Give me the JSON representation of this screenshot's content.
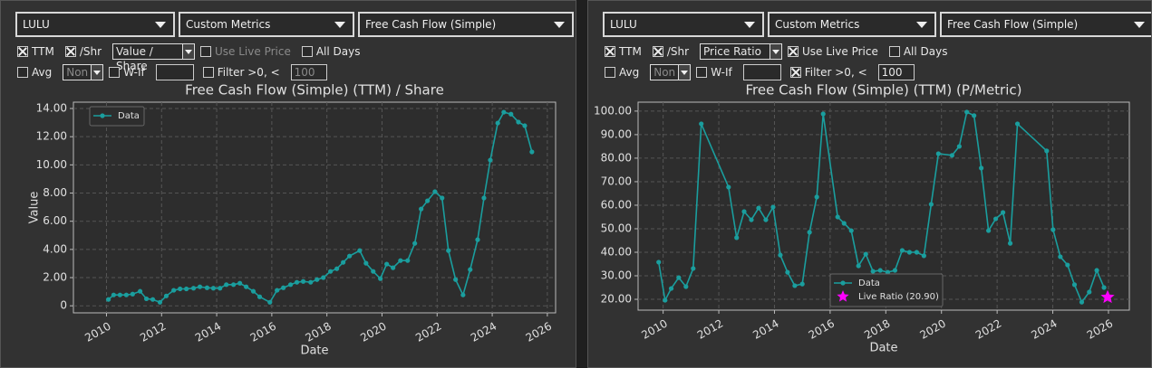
{
  "panels": [
    {
      "dropdowns": [
        "LULU",
        "Custom Metrics",
        "Free Cash Flow (Simple)"
      ],
      "rows": [
        [
          {
            "kind": "check",
            "label": "TTM",
            "checked": true
          },
          {
            "kind": "check",
            "label": "/Shr",
            "checked": true
          },
          {
            "kind": "select",
            "label": "Value / Share"
          },
          {
            "kind": "check",
            "label": "Use Live Price",
            "checked": false,
            "disabled": true
          },
          {
            "kind": "check",
            "label": "All Days",
            "checked": false
          }
        ],
        [
          {
            "kind": "check",
            "label": "Avg",
            "checked": false
          },
          {
            "kind": "select",
            "label": "Non",
            "disabled": true
          },
          {
            "kind": "check",
            "label": "W-If",
            "checked": false
          },
          {
            "kind": "input"
          },
          {
            "kind": "check",
            "label": "Filter >0, <",
            "checked": false
          },
          {
            "kind": "input",
            "label": "100",
            "disabled": true
          }
        ]
      ],
      "chart_data": {
        "type": "line",
        "title": "Free Cash Flow (Simple) (TTM) / Share",
        "xlabel": "Date",
        "ylabel": "Value",
        "xlim": [
          2008.8,
          2026.3
        ],
        "xticks": [
          2010,
          2012,
          2014,
          2016,
          2018,
          2020,
          2022,
          2024,
          2026
        ],
        "ylim": [
          -0.5,
          14.45
        ],
        "yticks": [
          0,
          {
            "value": 2,
            "label": "2.00"
          },
          {
            "value": 4,
            "label": "4.00"
          },
          {
            "value": 6,
            "label": "6.00"
          },
          {
            "value": 8,
            "label": "8.00"
          },
          {
            "value": 10,
            "label": "10.00"
          },
          {
            "value": 12,
            "label": "12.00"
          },
          {
            "value": 14,
            "label": "14.00"
          }
        ],
        "grid": true,
        "legend": "upper left",
        "series": [
          {
            "name": "Data",
            "color": "#1a9e9e",
            "marker": "circle",
            "x": [
              2010.07,
              2010.26,
              2010.49,
              2010.72,
              2010.95,
              2011.22,
              2011.45,
              2011.68,
              2011.94,
              2012.17,
              2012.44,
              2012.67,
              2012.9,
              2013.16,
              2013.39,
              2013.65,
              2013.88,
              2014.12,
              2014.35,
              2014.61,
              2014.84,
              2015.07,
              2015.33,
              2015.56,
              2015.93,
              2016.19,
              2016.42,
              2016.68,
              2016.91,
              2017.14,
              2017.41,
              2017.64,
              2017.87,
              2018.13,
              2018.36,
              2018.59,
              2018.82,
              2019.19,
              2019.42,
              2019.68,
              2019.94,
              2020.17,
              2020.4,
              2020.67,
              2020.93,
              2021.19,
              2021.42,
              2021.65,
              2021.92,
              2022.18,
              2022.41,
              2022.67,
              2022.94,
              2023.2,
              2023.47,
              2023.7,
              2023.93,
              2024.2,
              2024.42,
              2024.68,
              2024.95,
              2025.18,
              2025.44
            ],
            "values": [
              0.45,
              0.77,
              0.77,
              0.77,
              0.83,
              1.03,
              0.5,
              0.45,
              0.25,
              0.7,
              1.1,
              1.2,
              1.2,
              1.25,
              1.35,
              1.28,
              1.25,
              1.25,
              1.5,
              1.5,
              1.6,
              1.35,
              1.03,
              0.64,
              0.25,
              1.1,
              1.28,
              1.5,
              1.67,
              1.73,
              1.67,
              1.86,
              2.0,
              2.44,
              2.63,
              3.08,
              3.53,
              3.92,
              3.02,
              2.44,
              1.93,
              2.96,
              2.7,
              3.21,
              3.21,
              4.43,
              6.87,
              7.45,
              8.1,
              7.65,
              3.92,
              1.86,
              0.77,
              2.57,
              4.69,
              7.65,
              10.34,
              12.97,
              13.74,
              13.6,
              13.04,
              12.78,
              10.92
            ]
          }
        ]
      }
    },
    {
      "dropdowns": [
        "LULU",
        "Custom Metrics",
        "Free Cash Flow (Simple)"
      ],
      "rows": [
        [
          {
            "kind": "check",
            "label": "TTM",
            "checked": true
          },
          {
            "kind": "check",
            "label": "/Shr",
            "checked": true
          },
          {
            "kind": "select",
            "label": "Price Ratio"
          },
          {
            "kind": "check",
            "label": "Use Live Price",
            "checked": true
          },
          {
            "kind": "check",
            "label": "All Days",
            "checked": false
          }
        ],
        [
          {
            "kind": "check",
            "label": "Avg",
            "checked": false
          },
          {
            "kind": "select",
            "label": "Non",
            "disabled": true
          },
          {
            "kind": "check",
            "label": "W-If",
            "checked": false
          },
          {
            "kind": "input"
          },
          {
            "kind": "check",
            "label": "Filter >0, <",
            "checked": true
          },
          {
            "kind": "input",
            "label": "100"
          }
        ]
      ],
      "chart_data": {
        "type": "line",
        "title": "Free Cash Flow (Simple) (TTM) (P/Metric)",
        "xlabel": "Date",
        "xlim": [
          2009.1,
          2026.75
        ],
        "xticks": [
          2010,
          2012,
          2014,
          2016,
          2018,
          2020,
          2022,
          2024,
          2026
        ],
        "ylim": [
          15.4,
          103.8
        ],
        "yticks": [
          {
            "value": 20,
            "label": "20.00"
          },
          {
            "value": 30,
            "label": "30.00"
          },
          {
            "value": 40,
            "label": "40.00"
          },
          {
            "value": 50,
            "label": "50.00"
          },
          {
            "value": 60,
            "label": "60.00"
          },
          {
            "value": 70,
            "label": "70.00"
          },
          {
            "value": 80,
            "label": "80.00"
          },
          {
            "value": 90,
            "label": "90.00"
          },
          {
            "value": 100,
            "label": "100.00"
          }
        ],
        "grid": true,
        "legend": "lower center",
        "series": [
          {
            "name": "Data",
            "color": "#1a9e9e",
            "marker": "circle",
            "x": [
              2009.84,
              2010.07,
              2010.29,
              2010.56,
              2010.82,
              2011.08,
              2011.37,
              2012.35,
              2012.64,
              2012.91,
              2013.17,
              2013.43,
              2013.69,
              2013.95,
              2014.21,
              2014.47,
              2014.73,
              2015.0,
              2015.26,
              2015.52,
              2015.75,
              2016.27,
              2016.5,
              2016.76,
              2017.02,
              2017.28,
              2017.54,
              2017.8,
              2018.07,
              2018.33,
              2018.59,
              2018.85,
              2019.11,
              2019.37,
              2019.63,
              2019.89,
              2020.38,
              2020.64,
              2020.91,
              2021.17,
              2021.43,
              2021.69,
              2021.95,
              2022.21,
              2022.47,
              2022.73,
              2023.78,
              2024.01,
              2024.27,
              2024.53,
              2024.78,
              2025.04,
              2025.31,
              2025.58,
              2025.84
            ],
            "values": [
              35.8,
              19.6,
              24.6,
              29.2,
              25.4,
              33.1,
              94.6,
              67.7,
              46.2,
              57.3,
              53.8,
              58.8,
              53.8,
              59.2,
              38.8,
              31.5,
              25.8,
              26.5,
              48.5,
              63.5,
              98.8,
              55.0,
              52.3,
              49.2,
              34.2,
              39.2,
              31.9,
              32.3,
              31.5,
              32.3,
              40.8,
              40.0,
              40.0,
              38.5,
              60.4,
              81.9,
              81.2,
              85.0,
              99.6,
              98.1,
              75.8,
              49.2,
              54.2,
              56.9,
              43.8,
              94.6,
              83.1,
              49.6,
              38.1,
              34.6,
              26.2,
              18.8,
              23.1,
              32.3,
              25.0
            ]
          },
          {
            "name": "Live Ratio (20.90)",
            "color": "#ff00ff",
            "marker": "star",
            "x": [
              2025.97
            ],
            "values": [
              20.9
            ]
          }
        ]
      }
    }
  ]
}
